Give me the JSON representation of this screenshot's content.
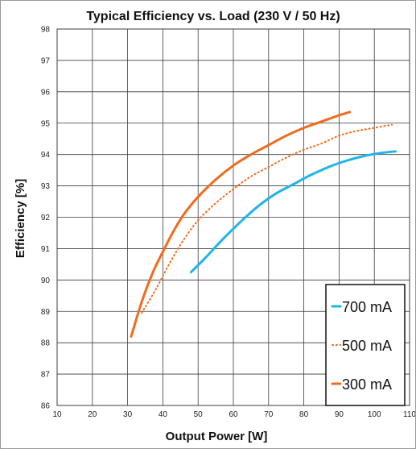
{
  "chart_data": {
    "type": "line",
    "title": "Typical Efficiency vs. Load (230 V / 50 Hz)",
    "xlabel": "Output Power [W]",
    "ylabel": "Efficiency [%]",
    "xlim": [
      10,
      110
    ],
    "ylim": [
      86,
      98
    ],
    "xticks": [
      10,
      20,
      30,
      40,
      50,
      60,
      70,
      80,
      90,
      100,
      110
    ],
    "yticks": [
      86,
      87,
      88,
      89,
      90,
      91,
      92,
      93,
      94,
      95,
      96,
      97,
      98
    ],
    "grid": true,
    "legend_position": "bottom-right",
    "series": [
      {
        "name": "700 mA",
        "color": "#1fb4ea",
        "dash": "solid",
        "points": [
          [
            48,
            90.25
          ],
          [
            52,
            90.7
          ],
          [
            57,
            91.3
          ],
          [
            62,
            91.85
          ],
          [
            67,
            92.35
          ],
          [
            72,
            92.75
          ],
          [
            77,
            93.05
          ],
          [
            82,
            93.35
          ],
          [
            87,
            93.6
          ],
          [
            92,
            93.8
          ],
          [
            97,
            93.95
          ],
          [
            102,
            94.05
          ],
          [
            106,
            94.1
          ]
        ]
      },
      {
        "name": "500 mA",
        "color": "#f26b1d",
        "dash": "dotted",
        "points": [
          [
            34,
            88.95
          ],
          [
            38,
            89.7
          ],
          [
            42,
            90.55
          ],
          [
            46,
            91.3
          ],
          [
            50,
            91.9
          ],
          [
            55,
            92.45
          ],
          [
            60,
            92.9
          ],
          [
            65,
            93.3
          ],
          [
            70,
            93.6
          ],
          [
            75,
            93.9
          ],
          [
            80,
            94.15
          ],
          [
            85,
            94.35
          ],
          [
            90,
            94.6
          ],
          [
            95,
            94.75
          ],
          [
            100,
            94.85
          ],
          [
            105,
            94.95
          ]
        ]
      },
      {
        "name": "300 mA",
        "color": "#f26b1d",
        "dash": "solid",
        "points": [
          [
            31,
            88.2
          ],
          [
            34,
            89.3
          ],
          [
            37,
            90.2
          ],
          [
            40,
            90.9
          ],
          [
            43,
            91.55
          ],
          [
            46,
            92.1
          ],
          [
            50,
            92.65
          ],
          [
            55,
            93.2
          ],
          [
            60,
            93.65
          ],
          [
            65,
            94.0
          ],
          [
            70,
            94.3
          ],
          [
            75,
            94.6
          ],
          [
            80,
            94.85
          ],
          [
            85,
            95.05
          ],
          [
            90,
            95.25
          ],
          [
            93,
            95.35
          ]
        ]
      }
    ]
  }
}
